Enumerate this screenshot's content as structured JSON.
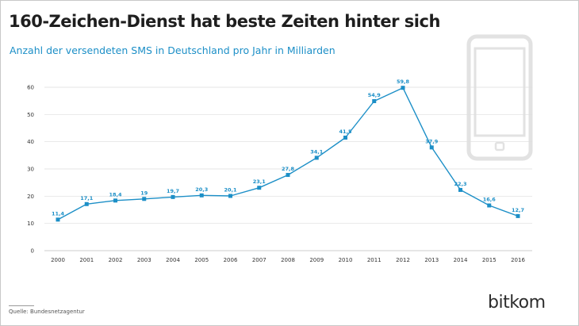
{
  "title": "160-Zeichen-Dienst hat beste Zeiten hinter sich",
  "subtitle": "Anzahl der versendeten SMS in Deutschland pro Jahr in Milliarden",
  "source": "Quelle: Bundesnetzagentur",
  "brand": "bitkom",
  "colors": {
    "accent": "#1c8fc7",
    "title": "#1e1e1e",
    "grid": "#dedede",
    "phone_icon": "#e2e2e2"
  },
  "decoration_icon": "smartphone-icon",
  "chart_data": {
    "type": "line",
    "x": [
      "2000",
      "2001",
      "2002",
      "2003",
      "2004",
      "2005",
      "2006",
      "2007",
      "2008",
      "2009",
      "2010",
      "2011",
      "2012",
      "2013",
      "2014",
      "2015",
      "2016"
    ],
    "values": [
      11.4,
      17.1,
      18.4,
      19,
      19.7,
      20.3,
      20.1,
      23.1,
      27.8,
      34.1,
      41.5,
      54.9,
      59.8,
      37.9,
      22.3,
      16.6,
      12.7
    ],
    "data_labels": [
      "11,4",
      "17,1",
      "18,4",
      "19",
      "19,7",
      "20,3",
      "20,1",
      "23,1",
      "27,8",
      "34,1",
      "41,5",
      "54,9",
      "59,8",
      "37,9",
      "22,3",
      "16,6",
      "12,7"
    ],
    "y_ticks": [
      0,
      10,
      20,
      30,
      40,
      50,
      60
    ],
    "ylim": [
      0,
      60
    ],
    "grid": true,
    "marker": "square",
    "xlabel": "",
    "ylabel": ""
  }
}
